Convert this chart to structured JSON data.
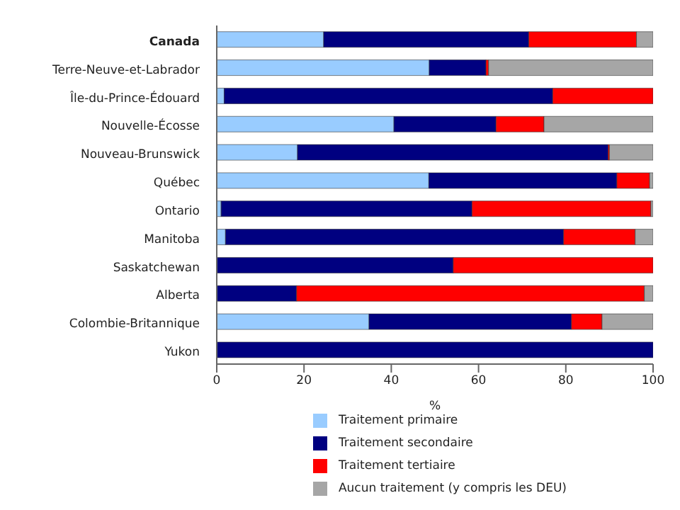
{
  "chart_data": {
    "type": "bar",
    "orientation": "horizontal",
    "stacked": true,
    "xlabel": "%",
    "categories": [
      "Canada",
      "Terre-Neuve-et-Labrador",
      "Île-du-Prince-Édouard",
      "Nouvelle-Écosse",
      "Nouveau-Brunswick",
      "Québec",
      "Ontario",
      "Manitoba",
      "Saskatchewan",
      "Alberta",
      "Colombie-Britannique",
      "Yukon"
    ],
    "series": [
      {
        "name": "Traitement primaire",
        "color": "#99ccff",
        "values": [
          24.5,
          48.7,
          1.7,
          40.6,
          18.5,
          48.6,
          1,
          2,
          0,
          0,
          34.9,
          0
        ]
      },
      {
        "name": "Traitement secondaire",
        "color": "#000080",
        "values": [
          47,
          13,
          75.3,
          23.4,
          71.2,
          43.1,
          57.5,
          77.5,
          54.2,
          18.3,
          46.4,
          100
        ]
      },
      {
        "name": "Traitement tertiaire",
        "color": "#ff0000",
        "values": [
          24.7,
          0.6,
          23,
          11,
          0.3,
          7.5,
          41,
          16.4,
          45.8,
          79.7,
          7,
          0
        ]
      },
      {
        "name": "Aucun traitement (y compris les DEU)",
        "color": "#a6a6a6",
        "values": [
          3.8,
          37.7,
          0,
          25,
          10,
          0.8,
          0.5,
          4.1,
          0,
          2,
          11.7,
          0
        ]
      }
    ],
    "xlim": [
      0,
      100
    ],
    "xticks": [
      0,
      20,
      40,
      60,
      80,
      100
    ],
    "grid": false,
    "legend": "bottom"
  }
}
